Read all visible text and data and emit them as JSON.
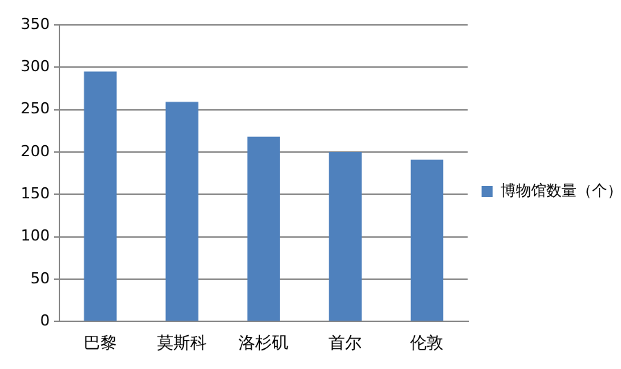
{
  "chart_data": {
    "type": "bar",
    "categories": [
      "巴黎",
      "莫斯科",
      "洛杉矶",
      "首尔",
      "伦敦"
    ],
    "series": [
      {
        "name": "博物馆数量（个）",
        "color": "#4f81bd",
        "values": [
          295,
          259,
          218,
          200,
          191
        ]
      }
    ],
    "ylim": [
      0,
      350
    ],
    "yticks": [
      0,
      50,
      100,
      150,
      200,
      250,
      300,
      350
    ],
    "grid": "y",
    "legend": "right"
  }
}
